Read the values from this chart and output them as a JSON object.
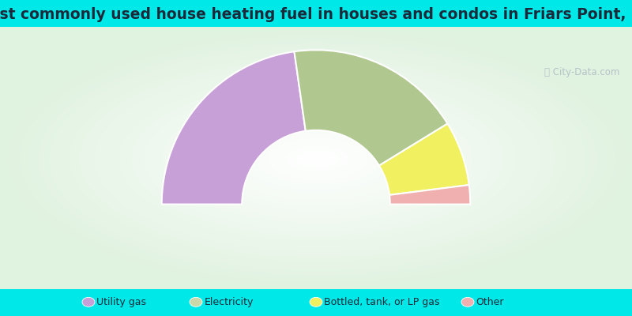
{
  "title": "Most commonly used house heating fuel in houses and condos in Friars Point, MS",
  "title_fontsize": 13.5,
  "segments": [
    {
      "label": "Utility gas",
      "value": 45.5,
      "color": "#c8a0d8"
    },
    {
      "label": "Electricity",
      "value": 37.0,
      "color": "#b0c890"
    },
    {
      "label": "Bottled, tank, or LP gas",
      "value": 13.5,
      "color": "#f0f060"
    },
    {
      "label": "Other",
      "value": 4.0,
      "color": "#f0b0b0"
    }
  ],
  "cyan_color": "#00e8e8",
  "legend_text_color": "#1a2a3a",
  "legend_marker_colors": [
    "#c8a0d8",
    "#c8d8a8",
    "#f0f060",
    "#f0b0b0"
  ],
  "outer_r": 1.0,
  "inner_r": 0.48,
  "watermark": "City-Data.com"
}
